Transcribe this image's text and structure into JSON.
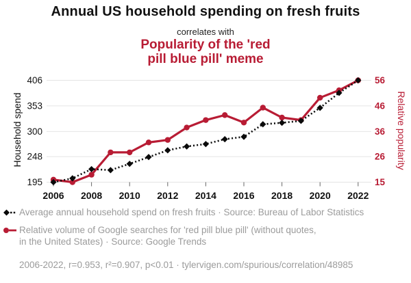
{
  "header": {
    "title": "Annual US household spending on fresh fruits",
    "connector": "correlates with",
    "subtitle_line1": "Popularity of the 'red",
    "subtitle_line2": "pill blue pill' meme"
  },
  "chart_data": {
    "type": "line",
    "title": "Annual US household spending on fresh fruits correlates with Popularity of the 'red pill blue pill' meme",
    "x": [
      2006,
      2007,
      2008,
      2009,
      2010,
      2011,
      2012,
      2013,
      2014,
      2015,
      2016,
      2017,
      2018,
      2019,
      2020,
      2021,
      2022
    ],
    "x_ticks": [
      2006,
      2008,
      2010,
      2012,
      2014,
      2016,
      2018,
      2020,
      2022
    ],
    "left_axis": {
      "label": "Household spend",
      "ticks": [
        406,
        353,
        300,
        248,
        195
      ],
      "range": [
        195,
        406
      ]
    },
    "right_axis": {
      "label": "Relative popularity",
      "ticks": [
        56,
        46,
        36,
        26,
        15
      ],
      "range": [
        15,
        56
      ]
    },
    "grid": true,
    "legend_position": "below",
    "series": [
      {
        "name": "Average annual household spend on fresh fruits",
        "axis": "left",
        "color": "#0a0a0a",
        "line_style": "dotted",
        "marker": "diamond",
        "values": [
          195,
          203,
          222,
          220,
          233,
          247,
          261,
          269,
          274,
          284,
          289,
          315,
          318,
          322,
          349,
          380,
          406
        ]
      },
      {
        "name": "Relative volume of Google searches for 'red pill blue pill'",
        "axis": "right",
        "color": "#b81c34",
        "line_style": "solid",
        "marker": "circle",
        "values": [
          16,
          15,
          18,
          27,
          27,
          31,
          32,
          37,
          40,
          42,
          39,
          45,
          41,
          40,
          49,
          52,
          56
        ]
      }
    ]
  },
  "legend": {
    "items": [
      {
        "marker": "black-diamond-dashed",
        "label": "Average annual household spend on fresh fruits · Source: Bureau of Labor Statistics"
      },
      {
        "marker": "red-circle-line",
        "label": "Relative volume of Google searches for 'red pill blue pill' (without quotes, in the United States) · Source: Google Trends"
      }
    ]
  },
  "footer": {
    "text": "2006-2022, r=0.953, r²=0.907, p<0.01 · tylervigen.com/spurious/correlation/48985"
  },
  "colors": {
    "accent_red": "#b81c34",
    "series_black": "#0a0a0a",
    "text_gray": "#9b9b9b",
    "grid_line": "#e4e4e4",
    "tick_mark": "#666666"
  }
}
